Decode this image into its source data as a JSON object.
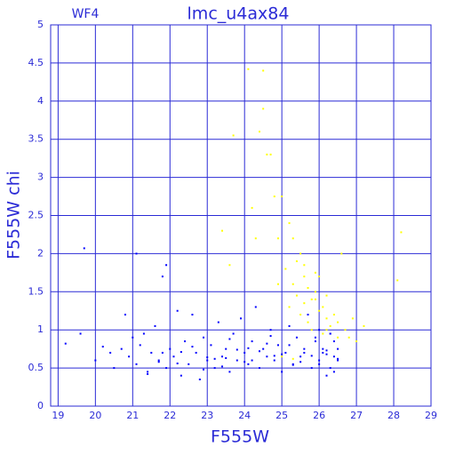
{
  "chart_data": {
    "type": "scatter",
    "title": "lmc_u4ax84",
    "annotation": "WF4",
    "x_label": "F555W",
    "y_label": "F555W chi",
    "xlim": [
      18.8,
      29
    ],
    "ylim": [
      0,
      5
    ],
    "xticks": [
      19,
      20,
      21,
      22,
      23,
      24,
      25,
      26,
      27,
      28,
      29
    ],
    "yticks": [
      0,
      0.5,
      1,
      1.5,
      2,
      2.5,
      3,
      3.5,
      4,
      4.5,
      5
    ],
    "grid": true,
    "axis_color": "#2b2bd6",
    "series": [
      {
        "color": "#0000ff",
        "x": [
          19.2,
          19.6,
          19.7,
          20.0,
          20.2,
          20.4,
          20.5,
          20.7,
          20.8,
          20.9,
          21.0,
          21.1,
          21.1,
          21.2,
          21.3,
          21.4,
          21.5,
          21.6,
          21.7,
          21.8,
          21.9,
          21.9,
          22.0,
          22.1,
          22.2,
          22.3,
          22.4,
          22.5,
          22.6,
          22.7,
          22.8,
          22.9,
          23.0,
          23.1,
          23.2,
          23.3,
          23.4,
          23.5,
          23.6,
          23.7,
          23.8,
          23.9,
          24.0,
          24.1,
          24.2,
          24.3,
          24.4,
          24.5,
          24.6,
          24.7,
          24.8,
          24.9,
          25.0,
          25.1,
          25.2,
          25.3,
          25.4,
          25.5,
          25.6,
          25.7,
          25.8,
          25.9,
          26.0,
          26.1,
          26.2,
          26.3,
          26.4,
          26.5,
          23.2,
          23.6,
          24.0,
          24.4,
          24.8,
          25.2,
          25.6,
          26.0,
          26.2,
          26.3,
          26.4,
          26.5,
          26.1,
          25.9,
          25.5,
          25.0,
          24.6,
          24.2,
          23.8,
          23.4,
          23.0,
          22.6,
          22.2,
          21.8,
          21.4,
          26.3,
          26.4,
          26.2,
          26.5,
          26.0,
          25.8,
          25.3,
          24.7,
          24.1,
          23.5,
          22.9,
          22.3,
          21.7
        ],
        "values": [
          0.82,
          0.95,
          2.07,
          0.6,
          0.78,
          0.7,
          0.5,
          0.75,
          1.2,
          0.65,
          0.9,
          2.0,
          0.55,
          0.8,
          0.95,
          0.45,
          0.7,
          1.05,
          0.6,
          1.7,
          1.85,
          0.5,
          0.75,
          0.65,
          1.25,
          0.4,
          0.85,
          0.55,
          1.2,
          0.7,
          0.35,
          0.9,
          0.6,
          0.8,
          0.5,
          1.1,
          0.65,
          0.75,
          0.45,
          0.95,
          0.6,
          1.15,
          0.7,
          0.55,
          0.85,
          1.3,
          0.5,
          0.75,
          0.65,
          1.0,
          0.6,
          0.8,
          0.45,
          0.7,
          1.05,
          0.55,
          0.9,
          0.65,
          0.75,
          1.2,
          0.5,
          0.85,
          0.6,
          0.7,
          0.4,
          0.95,
          0.65,
          0.75,
          0.62,
          0.88,
          0.58,
          0.72,
          0.66,
          0.8,
          0.7,
          0.55,
          0.68,
          0.5,
          0.85,
          0.62,
          0.75,
          0.9,
          0.58,
          0.68,
          0.82,
          0.6,
          0.74,
          0.52,
          0.64,
          0.78,
          0.56,
          0.7,
          0.42,
          0.95,
          0.45,
          0.73,
          0.6,
          1.0,
          0.66,
          0.54,
          0.92,
          0.76,
          0.63,
          0.48,
          0.71,
          0.58
        ]
      },
      {
        "color": "#ffff00",
        "x": [
          23.4,
          23.7,
          24.1,
          24.3,
          24.5,
          24.5,
          24.6,
          24.4,
          24.7,
          24.8,
          24.9,
          24.9,
          25.0,
          25.1,
          25.2,
          25.2,
          25.3,
          25.3,
          25.4,
          25.4,
          25.5,
          25.5,
          25.6,
          25.6,
          25.7,
          25.7,
          25.8,
          25.8,
          25.9,
          25.9,
          26.0,
          26.0,
          26.1,
          26.1,
          26.2,
          26.2,
          26.3,
          26.4,
          26.5,
          26.6,
          26.7,
          26.8,
          26.9,
          27.0,
          27.2,
          28.1,
          28.2,
          25.0,
          25.3,
          25.6,
          25.9,
          26.2,
          26.5,
          24.2,
          23.6
        ],
        "values": [
          2.3,
          3.55,
          4.42,
          2.2,
          3.9,
          4.4,
          3.3,
          3.6,
          3.3,
          2.75,
          2.2,
          1.6,
          2.75,
          1.8,
          2.4,
          1.3,
          2.2,
          1.6,
          1.9,
          1.45,
          2.0,
          1.2,
          1.7,
          1.35,
          1.55,
          1.1,
          1.4,
          1.0,
          1.75,
          1.4,
          1.7,
          1.25,
          1.3,
          0.95,
          1.45,
          1.15,
          1.05,
          1.2,
          1.1,
          2.0,
          1.0,
          0.9,
          1.15,
          0.85,
          1.05,
          1.65,
          2.28,
          0.65,
          0.62,
          1.85,
          1.5,
          1.0,
          0.9,
          2.6,
          1.85
        ]
      }
    ]
  }
}
